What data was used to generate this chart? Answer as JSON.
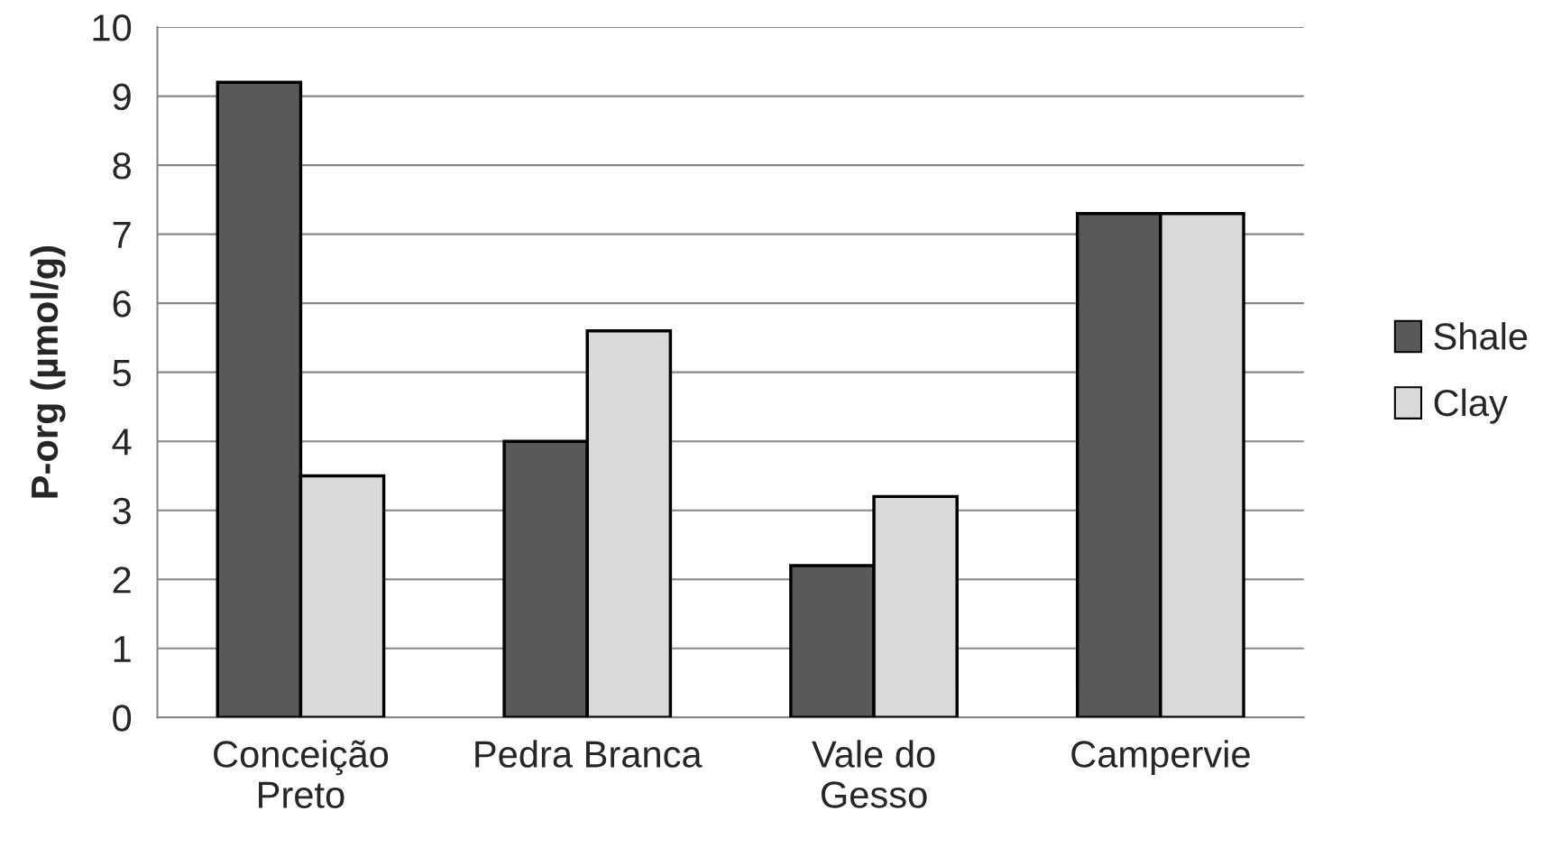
{
  "chart_data": {
    "type": "bar",
    "ylabel": "P-org (µmol/g)",
    "categories": [
      "Conceição\nPreto",
      "Pedra Branca",
      "Vale do\nGesso",
      "Campervie"
    ],
    "series": [
      {
        "name": "Shale",
        "color": "#595959",
        "values": [
          9.2,
          4.0,
          2.2,
          7.3
        ]
      },
      {
        "name": "Clay",
        "color": "#d9d9d9",
        "values": [
          3.5,
          5.6,
          3.2,
          7.3
        ]
      }
    ],
    "ylim": [
      0,
      10
    ],
    "yticks": [
      0,
      1,
      2,
      3,
      4,
      5,
      6,
      7,
      8,
      9,
      10
    ],
    "grid": "y",
    "legend": "right"
  }
}
